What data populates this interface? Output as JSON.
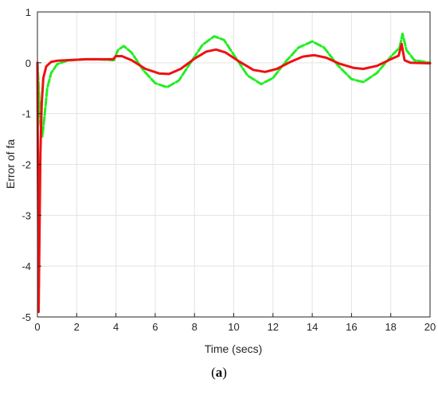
{
  "chart_data": {
    "type": "line",
    "xlabel": "Time (secs)",
    "ylabel": "Error of fa",
    "xlim": [
      0,
      20
    ],
    "ylim": [
      -5,
      1
    ],
    "xticks": [
      "0",
      "2",
      "4",
      "6",
      "8",
      "10",
      "12",
      "14",
      "16",
      "18",
      "20"
    ],
    "yticks": [
      "1",
      "0",
      "-1",
      "-2",
      "-3",
      "-4",
      "-5"
    ],
    "grid": true,
    "series": [
      {
        "color": "#22ee22",
        "style": "dashed",
        "points": [
          [
            0,
            0
          ],
          [
            0.08,
            -0.6
          ],
          [
            0.15,
            -1.2
          ],
          [
            0.25,
            -1.45
          ],
          [
            0.35,
            -1.1
          ],
          [
            0.5,
            -0.5
          ],
          [
            0.7,
            -0.2
          ],
          [
            1.0,
            -0.03
          ],
          [
            1.5,
            0.04
          ],
          [
            2.0,
            0.06
          ],
          [
            2.5,
            0.07
          ],
          [
            3.0,
            0.07
          ],
          [
            3.5,
            0.06
          ],
          [
            3.9,
            0.05
          ],
          [
            4.1,
            0.25
          ],
          [
            4.4,
            0.33
          ],
          [
            4.8,
            0.2
          ],
          [
            5.4,
            -0.15
          ],
          [
            6.0,
            -0.4
          ],
          [
            6.6,
            -0.48
          ],
          [
            7.2,
            -0.35
          ],
          [
            7.8,
            0.0
          ],
          [
            8.4,
            0.35
          ],
          [
            9.0,
            0.52
          ],
          [
            9.5,
            0.45
          ],
          [
            10.1,
            0.1
          ],
          [
            10.7,
            -0.25
          ],
          [
            11.4,
            -0.42
          ],
          [
            12.0,
            -0.3
          ],
          [
            12.6,
            0.0
          ],
          [
            13.3,
            0.3
          ],
          [
            14.0,
            0.42
          ],
          [
            14.6,
            0.3
          ],
          [
            15.3,
            -0.05
          ],
          [
            16.0,
            -0.32
          ],
          [
            16.6,
            -0.38
          ],
          [
            17.3,
            -0.2
          ],
          [
            18.0,
            0.12
          ],
          [
            18.45,
            0.3
          ],
          [
            18.6,
            0.57
          ],
          [
            18.8,
            0.25
          ],
          [
            19.2,
            0.05
          ],
          [
            20,
            0.0
          ]
        ]
      },
      {
        "color": "#ee1111",
        "style": "solid",
        "points": [
          [
            0,
            0
          ],
          [
            0.03,
            -2.5
          ],
          [
            0.06,
            -4.9
          ],
          [
            0.1,
            -3.5
          ],
          [
            0.15,
            -1.8
          ],
          [
            0.22,
            -0.8
          ],
          [
            0.3,
            -0.3
          ],
          [
            0.45,
            -0.07
          ],
          [
            0.7,
            0.02
          ],
          [
            1.0,
            0.04
          ],
          [
            1.5,
            0.05
          ],
          [
            2.0,
            0.06
          ],
          [
            2.5,
            0.07
          ],
          [
            3.0,
            0.07
          ],
          [
            3.5,
            0.07
          ],
          [
            3.85,
            0.07
          ],
          [
            4.0,
            0.13
          ],
          [
            4.3,
            0.13
          ],
          [
            4.8,
            0.05
          ],
          [
            5.5,
            -0.12
          ],
          [
            6.2,
            -0.21
          ],
          [
            6.7,
            -0.22
          ],
          [
            7.3,
            -0.12
          ],
          [
            8.0,
            0.08
          ],
          [
            8.6,
            0.22
          ],
          [
            9.1,
            0.26
          ],
          [
            9.6,
            0.2
          ],
          [
            10.3,
            0.02
          ],
          [
            11.0,
            -0.14
          ],
          [
            11.6,
            -0.18
          ],
          [
            12.2,
            -0.12
          ],
          [
            12.9,
            0.02
          ],
          [
            13.5,
            0.12
          ],
          [
            14.1,
            0.15
          ],
          [
            14.7,
            0.1
          ],
          [
            15.4,
            -0.02
          ],
          [
            16.1,
            -0.1
          ],
          [
            16.6,
            -0.12
          ],
          [
            17.3,
            -0.06
          ],
          [
            18.0,
            0.07
          ],
          [
            18.4,
            0.14
          ],
          [
            18.55,
            0.37
          ],
          [
            18.7,
            0.05
          ],
          [
            19.0,
            0.0
          ],
          [
            20,
            -0.01
          ]
        ]
      }
    ]
  },
  "caption": {
    "open": "(",
    "letter": "a",
    "close": ")"
  }
}
